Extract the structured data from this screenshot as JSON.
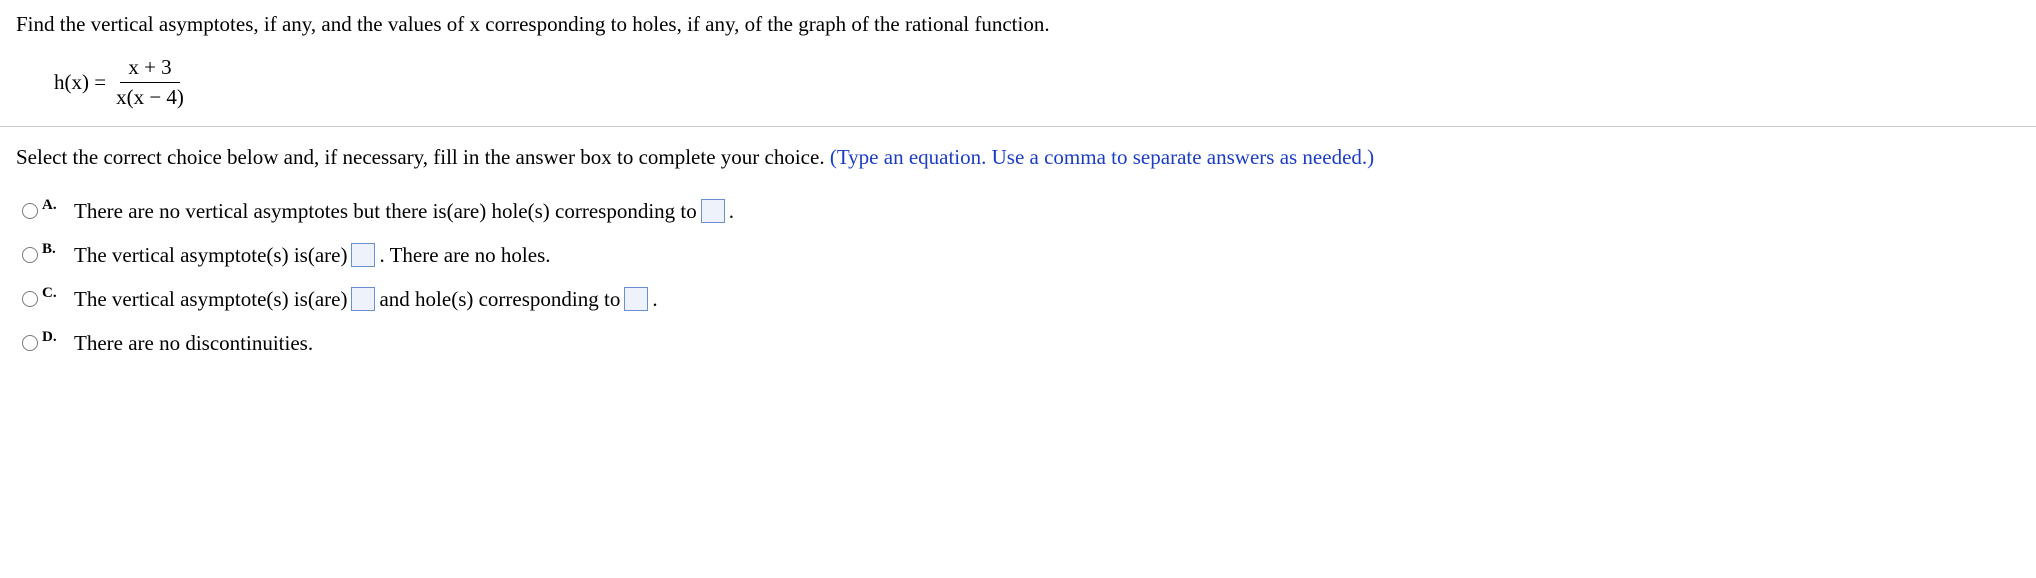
{
  "question": {
    "prompt": "Find the vertical asymptotes, if any, and the values of x corresponding to holes, if any, of the graph of the rational function.",
    "function_lhs": "h(x) =",
    "numerator": "x + 3",
    "denominator": "x(x − 4)"
  },
  "instruction": {
    "main": "Select the correct choice below and, if necessary, fill in the answer box to complete your choice. ",
    "hint": "(Type an equation. Use a comma to separate answers as needed.)"
  },
  "choices": {
    "A": {
      "letter": "A.",
      "pre": "There are no vertical asymptotes but there is(are) hole(s) corresponding to ",
      "post": "."
    },
    "B": {
      "letter": "B.",
      "pre": "The vertical asymptote(s) is(are) ",
      "post": ". There are no holes."
    },
    "C": {
      "letter": "C.",
      "pre": "The vertical asymptote(s) is(are) ",
      "mid": " and hole(s) corresponding to ",
      "post": "."
    },
    "D": {
      "letter": "D.",
      "text": "There are no discontinuities."
    }
  }
}
